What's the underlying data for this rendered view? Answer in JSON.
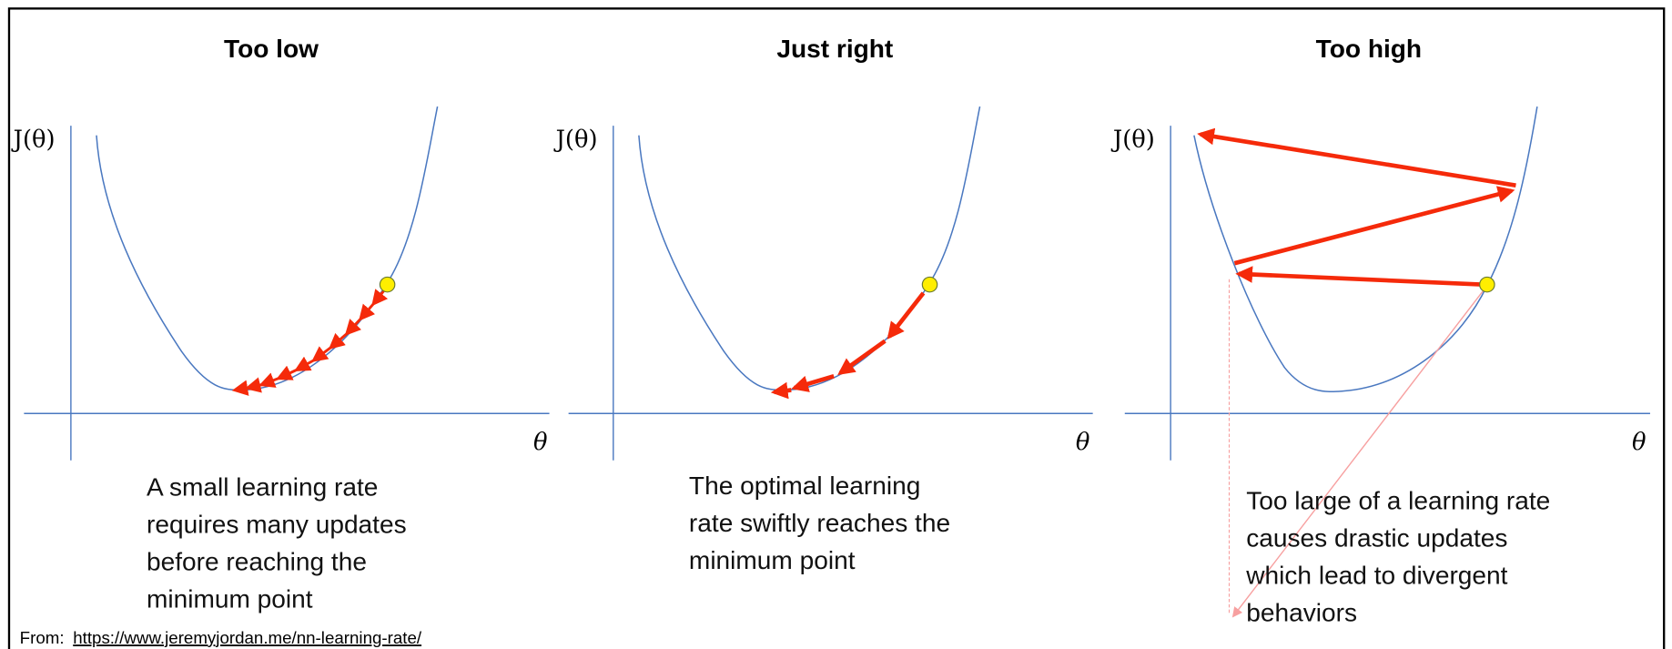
{
  "panels": [
    {
      "title": "Too low",
      "y_label": "J(θ)",
      "x_label": "θ",
      "caption": [
        "A small learning rate",
        "requires many updates",
        "before reaching the",
        "minimum point"
      ]
    },
    {
      "title": "Just right",
      "y_label": "J(θ)",
      "x_label": "θ",
      "caption": [
        "The optimal learning",
        "rate swiftly reaches the",
        "minimum point"
      ]
    },
    {
      "title": "Too high",
      "y_label": "J(θ)",
      "x_label": "θ",
      "caption": [
        "Too large of a learning rate",
        "causes drastic updates",
        "which lead to divergent",
        "behaviors"
      ]
    }
  ],
  "footer": {
    "prefix": "From:",
    "link": "https://www.jeremyjordan.me/nn-learning-rate/"
  }
}
